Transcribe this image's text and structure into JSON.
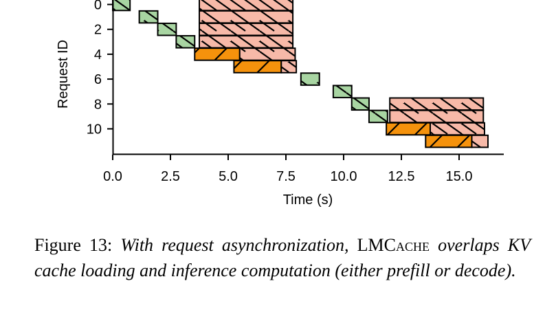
{
  "chart_data": {
    "type": "gantt",
    "xlabel": "Time (s)",
    "ylabel": "Request ID",
    "xlim": [
      0,
      17
    ],
    "ylim": [
      -0.5,
      12
    ],
    "xticks": [
      0.0,
      2.5,
      5.0,
      7.5,
      10.0,
      12.5,
      15.0
    ],
    "xtick_labels": [
      "0.0",
      "2.5",
      "5.0",
      "7.5",
      "10.0",
      "12.5",
      "15.0"
    ],
    "yticks": [
      0,
      2,
      4,
      6,
      8,
      10
    ],
    "ytick_labels": [
      "0",
      "2",
      "4",
      "6",
      "8",
      "10"
    ],
    "grid": false,
    "colors": {
      "green": "#a8d5a2",
      "orange": "#f5920c",
      "salmon": "#f7b9a8",
      "edge": "#000000"
    },
    "bars": [
      {
        "request": 0,
        "start": 0.0,
        "end": 0.75,
        "color": "green",
        "hatch": "back"
      },
      {
        "request": 0,
        "start": 3.75,
        "end": 7.8,
        "color": "salmon",
        "hatch": "back"
      },
      {
        "request": 1,
        "start": 1.15,
        "end": 1.95,
        "color": "green",
        "hatch": "back"
      },
      {
        "request": 1,
        "start": 3.75,
        "end": 7.8,
        "color": "salmon",
        "hatch": "back"
      },
      {
        "request": 2,
        "start": 1.95,
        "end": 2.75,
        "color": "green",
        "hatch": "back"
      },
      {
        "request": 2,
        "start": 3.75,
        "end": 7.8,
        "color": "salmon",
        "hatch": "back"
      },
      {
        "request": 3,
        "start": 2.75,
        "end": 3.55,
        "color": "green",
        "hatch": "back"
      },
      {
        "request": 3,
        "start": 3.75,
        "end": 7.8,
        "color": "salmon",
        "hatch": "back"
      },
      {
        "request": 4,
        "start": 3.55,
        "end": 5.5,
        "color": "orange",
        "hatch": "fwd"
      },
      {
        "request": 4,
        "start": 5.5,
        "end": 7.9,
        "color": "salmon",
        "hatch": "back"
      },
      {
        "request": 5,
        "start": 5.25,
        "end": 7.3,
        "color": "orange",
        "hatch": "fwd"
      },
      {
        "request": 5,
        "start": 7.3,
        "end": 7.95,
        "color": "salmon",
        "hatch": "back"
      },
      {
        "request": 6,
        "start": 8.15,
        "end": 8.95,
        "color": "green",
        "hatch": "back"
      },
      {
        "request": 7,
        "start": 9.55,
        "end": 10.35,
        "color": "green",
        "hatch": "back"
      },
      {
        "request": 8,
        "start": 10.35,
        "end": 11.1,
        "color": "green",
        "hatch": "back"
      },
      {
        "request": 8,
        "start": 12.0,
        "end": 16.05,
        "color": "salmon",
        "hatch": "back"
      },
      {
        "request": 9,
        "start": 11.1,
        "end": 11.9,
        "color": "green",
        "hatch": "back"
      },
      {
        "request": 9,
        "start": 12.0,
        "end": 16.05,
        "color": "salmon",
        "hatch": "back"
      },
      {
        "request": 10,
        "start": 11.85,
        "end": 13.75,
        "color": "orange",
        "hatch": "fwd"
      },
      {
        "request": 10,
        "start": 13.75,
        "end": 16.1,
        "color": "salmon",
        "hatch": "back"
      },
      {
        "request": 11,
        "start": 13.55,
        "end": 15.55,
        "color": "orange",
        "hatch": "fwd"
      },
      {
        "request": 11,
        "start": 15.55,
        "end": 16.25,
        "color": "salmon",
        "hatch": "back"
      }
    ]
  },
  "caption": {
    "prefix": "Figure 13: ",
    "italic_1": "With request asynchronization,",
    "name_lead": "LMC",
    "name_rest": "ache",
    "italic_2": " overlaps KV cache loading and inference computation (either prefill or decode)."
  }
}
